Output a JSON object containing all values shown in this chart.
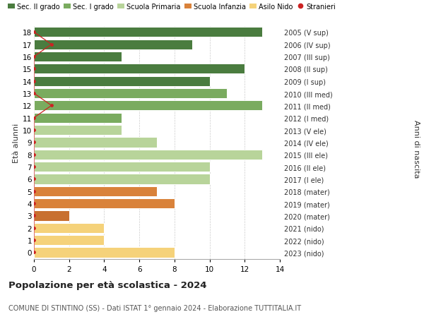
{
  "ages": [
    18,
    17,
    16,
    15,
    14,
    13,
    12,
    11,
    10,
    9,
    8,
    7,
    6,
    5,
    4,
    3,
    2,
    1,
    0
  ],
  "right_labels": [
    "2005 (V sup)",
    "2006 (IV sup)",
    "2007 (III sup)",
    "2008 (II sup)",
    "2009 (I sup)",
    "2010 (III med)",
    "2011 (II med)",
    "2012 (I med)",
    "2013 (V ele)",
    "2014 (IV ele)",
    "2015 (III ele)",
    "2016 (II ele)",
    "2017 (I ele)",
    "2018 (mater)",
    "2019 (mater)",
    "2020 (mater)",
    "2021 (nido)",
    "2022 (nido)",
    "2023 (nido)"
  ],
  "bar_values": [
    13,
    9,
    5,
    12,
    10,
    11,
    13,
    5,
    5,
    7,
    13,
    10,
    10,
    7,
    8,
    2,
    4,
    4,
    8
  ],
  "bar_colors": [
    "#4a7c3f",
    "#4a7c3f",
    "#4a7c3f",
    "#4a7c3f",
    "#4a7c3f",
    "#7aab5f",
    "#7aab5f",
    "#7aab5f",
    "#b8d49a",
    "#b8d49a",
    "#b8d49a",
    "#b8d49a",
    "#b8d49a",
    "#d9823a",
    "#d9823a",
    "#c87030",
    "#f5d27a",
    "#f5d27a",
    "#f5d27a"
  ],
  "stranieri_dots": [
    0,
    1,
    0,
    0,
    0,
    0,
    1,
    0,
    0,
    0,
    0,
    0,
    0,
    0,
    0,
    0,
    0,
    0,
    0
  ],
  "legend_labels": [
    "Sec. II grado",
    "Sec. I grado",
    "Scuola Primaria",
    "Scuola Infanzia",
    "Asilo Nido",
    "Stranieri"
  ],
  "legend_colors": [
    "#4a7c3f",
    "#7aab5f",
    "#b8d49a",
    "#d9823a",
    "#f5d27a",
    "#cc2222"
  ],
  "title": "Popolazione per età scolastica - 2024",
  "subtitle": "COMUNE DI STINTINO (SS) - Dati ISTAT 1° gennaio 2024 - Elaborazione TUTTITALIA.IT",
  "ylabel_left": "Età alunni",
  "ylabel_right": "Anni di nascita",
  "xlim": [
    0,
    14
  ],
  "bg_color": "#ffffff",
  "grid_color": "#cccccc",
  "bar_height": 0.82
}
